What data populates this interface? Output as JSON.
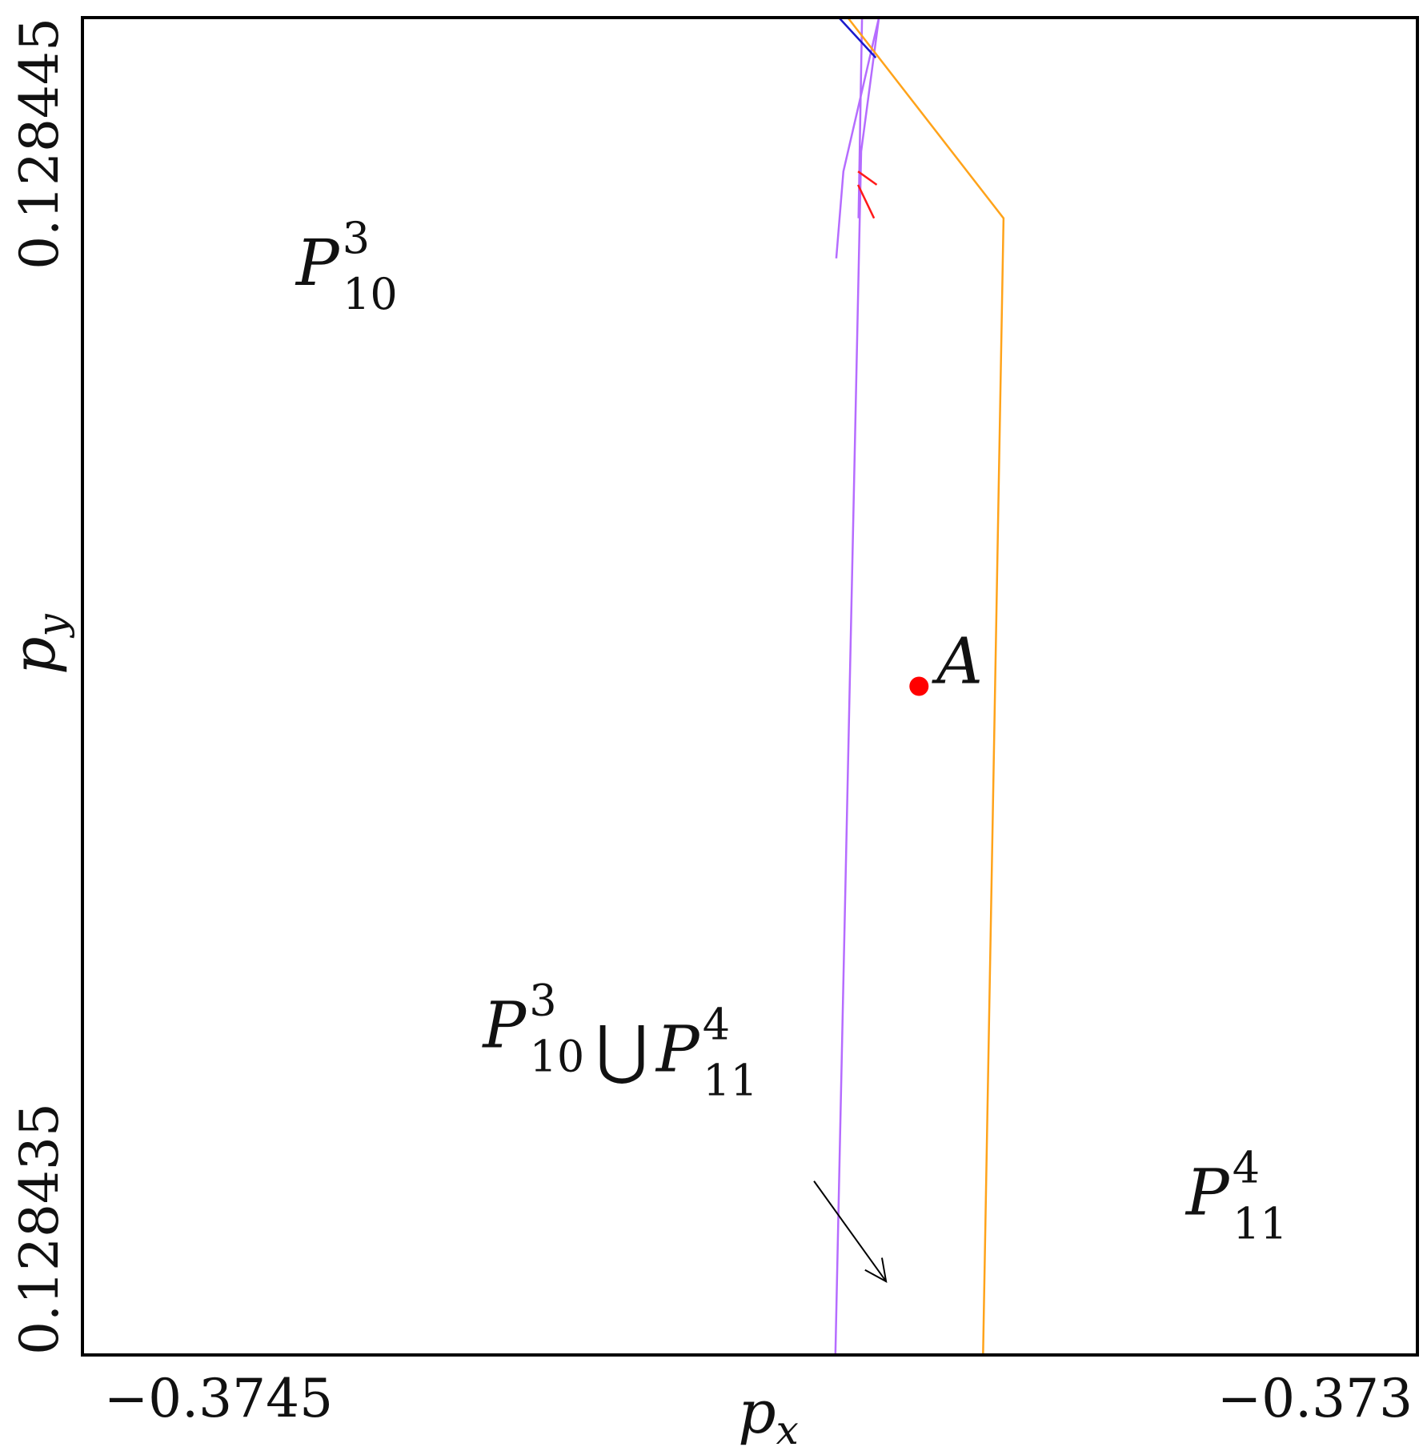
{
  "chart_data": {
    "type": "line",
    "title": "",
    "xlabel": "p_x",
    "ylabel": "p_y",
    "xlim": [
      -0.3745,
      -0.373
    ],
    "ylim": [
      0.128435,
      0.128445
    ],
    "x_ticks": [
      {
        "value": -0.3745,
        "label": "−0.3745"
      },
      {
        "value": -0.373,
        "label": "−0.373"
      }
    ],
    "y_ticks": [
      {
        "value": 0.128435,
        "label": "0.128435"
      },
      {
        "value": 0.128445,
        "label": "0.128445"
      }
    ],
    "grid": false,
    "colors": {
      "violet": "#b56cff",
      "orange": "#ffa31a",
      "red": "#ff1a1a",
      "blue": "#1a1acc",
      "point": "#ff0000"
    },
    "series": [
      {
        "color": "violet",
        "x": [
          -0.373654,
          -0.373625,
          -0.373605
        ],
        "y": [
          0.128435,
          0.128444,
          0.128445
        ]
      },
      {
        "color": "violet",
        "x": [
          -0.373624,
          -0.373628
        ],
        "y": [
          0.128445,
          0.1284435
        ]
      },
      {
        "color": "violet",
        "x": [
          -0.373605,
          -0.373645,
          -0.373653
        ],
        "y": [
          0.128445,
          0.12844385,
          0.1284432
        ]
      },
      {
        "color": "orange",
        "x": [
          -0.373488,
          -0.373465,
          -0.37364
        ],
        "y": [
          0.128435,
          0.1284435,
          0.128445
        ]
      },
      {
        "color": "red",
        "x": [
          -0.3736075,
          -0.3736285
        ],
        "y": [
          0.12844375,
          0.12844385
        ]
      },
      {
        "color": "red",
        "x": [
          -0.3736105,
          -0.3736285
        ],
        "y": [
          0.1284435,
          0.12844375
        ]
      },
      {
        "color": "blue",
        "x": [
          -0.37365,
          -0.3736085
        ],
        "y": [
          0.128445,
          0.1284447
        ]
      }
    ],
    "points": [
      {
        "label": "A",
        "x": -0.37356,
        "y": 0.12844
      }
    ],
    "annotations": [
      {
        "id": "p10-3",
        "base": "P",
        "sub": "10",
        "sup": "3",
        "x": -0.37426,
        "y": 0.128443
      },
      {
        "id": "union",
        "base": "P",
        "sub": "10",
        "sup": "3",
        "union": "⋃",
        "base2": "P",
        "sub2": "11",
        "sup2": "4",
        "x": -0.37405,
        "y": 0.1284373
      },
      {
        "id": "p11-4",
        "base": "P",
        "sub": "11",
        "sup": "4",
        "x": -0.37326,
        "y": 0.12843605
      }
    ],
    "arrow": {
      "from": [
        -0.373678,
        -0.373597
      ],
      "to": [
        0.1284363,
        0.12843555
      ]
    }
  }
}
